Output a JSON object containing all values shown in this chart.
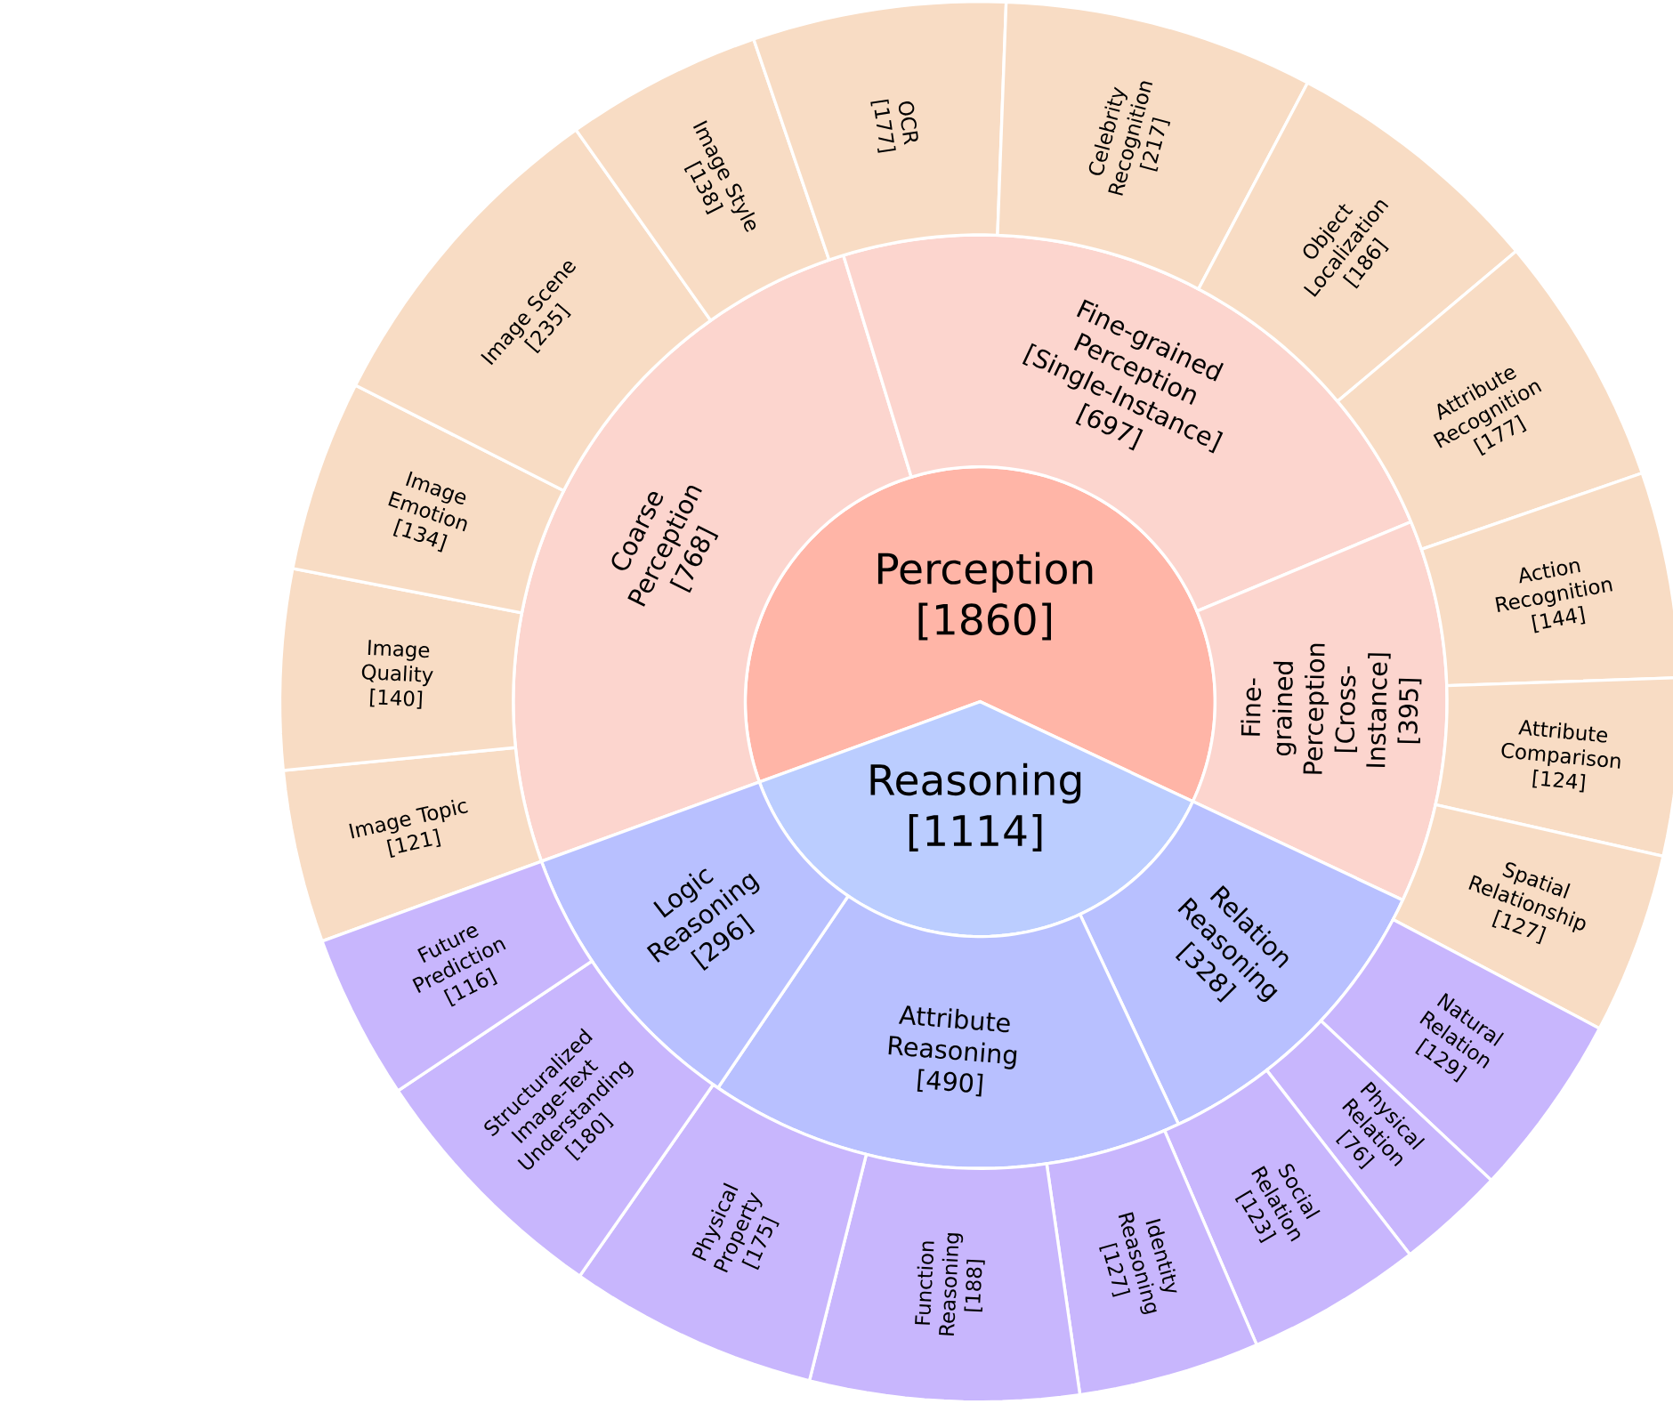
{
  "chart_data": [
    {
      "type": "pie",
      "categories": [
        "Perception",
        "Reasoning"
      ],
      "values": [
        1860,
        1114
      ],
      "colors": [
        "#ffb5a7",
        "#bbcdff"
      ],
      "value_labels": [
        "[1860]",
        "[1114]"
      ]
    },
    {
      "type": "donut",
      "categories": [
        "Coarse Perception",
        "Fine-grained Perception [Single-Instance]",
        "Fine-grained Perception [Cross-Instance]",
        "Relation Reasoning",
        "Attribute Reasoning",
        "Logic Reasoning"
      ],
      "values": [
        768,
        697,
        395,
        328,
        490,
        296
      ],
      "colors": [
        "#fcd5ce",
        "#fcd5ce",
        "#fcd5ce",
        "#b8c0ff",
        "#b8c0ff",
        "#b8c0ff"
      ],
      "value_labels": [
        "[768]",
        "[697]",
        "[395]",
        "[328]",
        "[490]",
        "[296]"
      ]
    },
    {
      "type": "donut",
      "categories": [
        "Image Topic",
        "Image Quality",
        "Image Emotion",
        "Image Scene",
        "Image Style",
        "OCR",
        "Celebrity Recognition",
        "Object Localization",
        "Attribute Recognition",
        "Action Recognition",
        "Attribute Comparison",
        "Spatial Relationship",
        "Natural Relation",
        "Physical Relation",
        "Social Relation",
        "Identity Reasoning",
        "Function Reasoning",
        "Physical Property",
        "Structuralized Image-Text Understanding",
        "Future Prediction"
      ],
      "values": [
        121,
        140,
        134,
        235,
        138,
        177,
        217,
        186,
        177,
        144,
        124,
        127,
        129,
        76,
        123,
        127,
        188,
        175,
        180,
        116
      ],
      "colors": [
        "#f8dcc4",
        "#f8dcc4",
        "#f8dcc4",
        "#f8dcc4",
        "#f8dcc4",
        "#f8dcc4",
        "#f8dcc4",
        "#f8dcc4",
        "#f8dcc4",
        "#f8dcc4",
        "#f8dcc4",
        "#f8dcc4",
        "#c8b6fd",
        "#c8b6fd",
        "#c8b6fd",
        "#c8b6fd",
        "#c8b6fd",
        "#c8b6fd",
        "#c8b6fd",
        "#c8b6fd"
      ],
      "value_labels": [
        "[121]",
        "[140]",
        "[134]",
        "[235]",
        "[138]",
        "[177]",
        "[217]",
        "[186]",
        "[177]",
        "[144]",
        "[124]",
        "[127]",
        "[129]",
        "[76]",
        "[123]",
        "[127]",
        "[188]",
        "[175]",
        "[180]",
        "[116]"
      ]
    }
  ]
}
